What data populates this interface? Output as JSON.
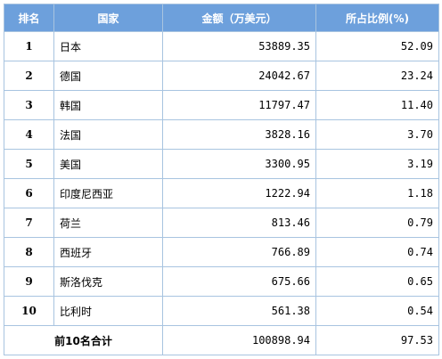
{
  "table": {
    "headers": [
      "排名",
      "国家",
      "金额（万美元）",
      "所占比例(%)"
    ],
    "rows": [
      {
        "rank": "1",
        "country": "日本",
        "amount": "53889.35",
        "share": "52.09"
      },
      {
        "rank": "2",
        "country": "德国",
        "amount": "24042.67",
        "share": "23.24"
      },
      {
        "rank": "3",
        "country": "韩国",
        "amount": "11797.47",
        "share": "11.40"
      },
      {
        "rank": "4",
        "country": "法国",
        "amount": "3828.16",
        "share": "3.70"
      },
      {
        "rank": "5",
        "country": "美国",
        "amount": "3300.95",
        "share": "3.19"
      },
      {
        "rank": "6",
        "country": "印度尼西亚",
        "amount": "1222.94",
        "share": "1.18"
      },
      {
        "rank": "7",
        "country": "荷兰",
        "amount": "813.46",
        "share": "0.79"
      },
      {
        "rank": "8",
        "country": "西班牙",
        "amount": "766.89",
        "share": "0.74"
      },
      {
        "rank": "9",
        "country": "斯洛伐克",
        "amount": "675.66",
        "share": "0.65"
      },
      {
        "rank": "10",
        "country": "比利时",
        "amount": "561.38",
        "share": "0.54"
      }
    ],
    "total": {
      "label": "前10名合计",
      "amount": "100898.94",
      "share": "97.53"
    }
  },
  "colors": {
    "header_bg": "#6da0dc",
    "header_text": "#ffffff",
    "border": "#a8c4e0"
  }
}
